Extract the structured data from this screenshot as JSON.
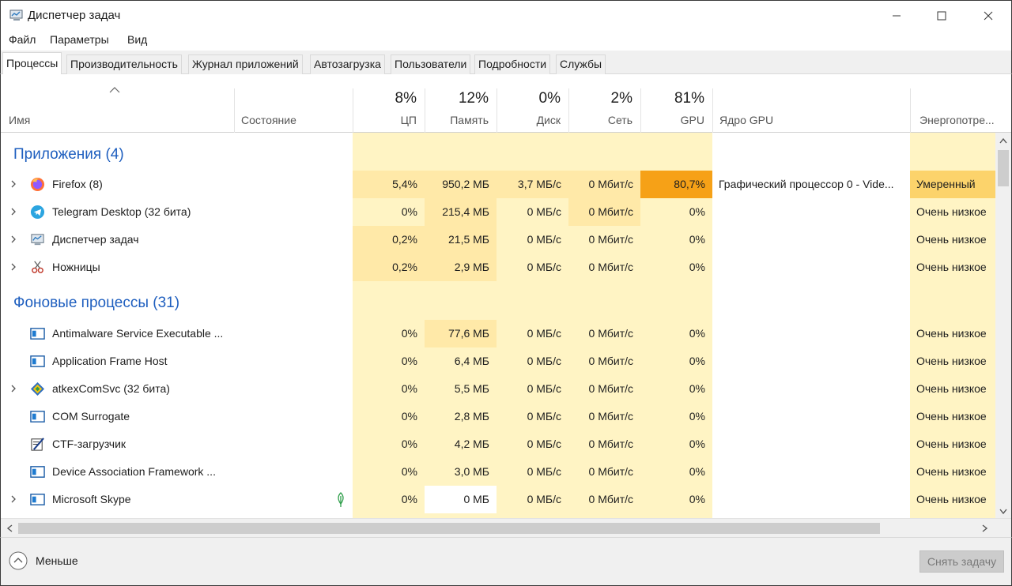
{
  "window": {
    "title": "Диспетчер задач"
  },
  "menu": [
    "Файл",
    "Параметры",
    "Вид"
  ],
  "tabs": [
    "Процессы",
    "Производительность",
    "Журнал приложений",
    "Автозагрузка",
    "Пользователи",
    "Подробности",
    "Службы"
  ],
  "columns": {
    "name": "Имя",
    "status": "Состояние",
    "cpu": {
      "pct": "8%",
      "label": "ЦП"
    },
    "mem": {
      "pct": "12%",
      "label": "Память"
    },
    "disk": {
      "pct": "0%",
      "label": "Диск"
    },
    "net": {
      "pct": "2%",
      "label": "Сеть"
    },
    "gpu": {
      "pct": "81%",
      "label": "GPU"
    },
    "gpu_engine": "Ядро GPU",
    "power": "Энергопотре..."
  },
  "groups": {
    "apps": "Приложения (4)",
    "background": "Фоновые процессы (31)"
  },
  "apps": [
    {
      "name": "Firefox (8)",
      "cpu": "5,4%",
      "mem": "950,2 МБ",
      "disk": "3,7 МБ/с",
      "net": "0 Мбит/с",
      "gpu": "80,7%",
      "engine": "Графический процессор 0 - Vide...",
      "power": "Умеренный",
      "icon": "firefox-icon"
    },
    {
      "name": "Telegram Desktop (32 бита)",
      "cpu": "0%",
      "mem": "215,4 МБ",
      "disk": "0 МБ/с",
      "net": "0 Мбит/с",
      "gpu": "0%",
      "engine": "",
      "power": "Очень низкое",
      "icon": "telegram-icon"
    },
    {
      "name": "Диспетчер задач",
      "cpu": "0,2%",
      "mem": "21,5 МБ",
      "disk": "0 МБ/с",
      "net": "0 Мбит/с",
      "gpu": "0%",
      "engine": "",
      "power": "Очень низкое",
      "icon": "task-manager-icon"
    },
    {
      "name": "Ножницы",
      "cpu": "0,2%",
      "mem": "2,9 МБ",
      "disk": "0 МБ/с",
      "net": "0 Мбит/с",
      "gpu": "0%",
      "engine": "",
      "power": "Очень низкое",
      "icon": "scissors-icon"
    }
  ],
  "background": [
    {
      "name": "Antimalware Service Executable ...",
      "cpu": "0%",
      "mem": "77,6 МБ",
      "disk": "0 МБ/с",
      "net": "0 Мбит/с",
      "gpu": "0%",
      "power": "Очень низкое",
      "icon": "service-window-icon"
    },
    {
      "name": "Application Frame Host",
      "cpu": "0%",
      "mem": "6,4 МБ",
      "disk": "0 МБ/с",
      "net": "0 Мбит/с",
      "gpu": "0%",
      "power": "Очень низкое",
      "icon": "service-window-icon"
    },
    {
      "name": "atkexComSvc (32 бита)",
      "cpu": "0%",
      "mem": "5,5 МБ",
      "disk": "0 МБ/с",
      "net": "0 Мбит/с",
      "gpu": "0%",
      "power": "Очень низкое",
      "icon": "asus-diamond-icon"
    },
    {
      "name": "COM Surrogate",
      "cpu": "0%",
      "mem": "2,8 МБ",
      "disk": "0 МБ/с",
      "net": "0 Мбит/с",
      "gpu": "0%",
      "power": "Очень низкое",
      "icon": "service-window-icon"
    },
    {
      "name": "CTF-загрузчик",
      "cpu": "0%",
      "mem": "4,2 МБ",
      "disk": "0 МБ/с",
      "net": "0 Мбит/с",
      "gpu": "0%",
      "power": "Очень низкое",
      "icon": "ctf-pen-icon"
    },
    {
      "name": "Device Association Framework ...",
      "cpu": "0%",
      "mem": "3,0 МБ",
      "disk": "0 МБ/с",
      "net": "0 Мбит/с",
      "gpu": "0%",
      "power": "Очень низкое",
      "icon": "service-window-icon"
    },
    {
      "name": "Microsoft Skype",
      "cpu": "0%",
      "mem": "0 МБ",
      "disk": "0 МБ/с",
      "net": "0 Мбит/с",
      "gpu": "0%",
      "power": "Очень низкое",
      "icon": "service-window-icon"
    }
  ],
  "footer": {
    "less": "Меньше",
    "end_task": "Снять задачу"
  },
  "colors": {
    "accent_blue": "#1f5fbf",
    "gpu_hot": "#f6a117",
    "energy_moderate": "#fcd36b"
  }
}
